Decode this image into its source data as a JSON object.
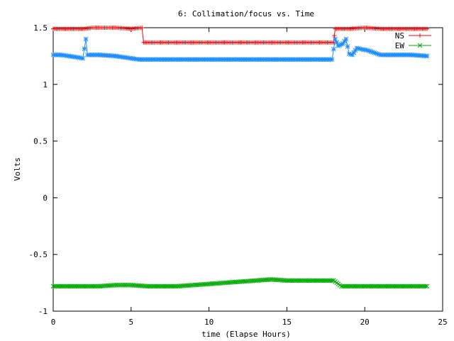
{
  "chart_data": {
    "type": "line",
    "title": "6: Collimation/focus vs. Time",
    "xlabel": "time (Elapse Hours)",
    "ylabel": "Volts",
    "xlim": [
      0,
      25
    ],
    "ylim": [
      -1,
      1.5
    ],
    "xticks": [
      "0",
      "5",
      "10",
      "15",
      "20",
      "25"
    ],
    "xtick_values": [
      0,
      5,
      10,
      15,
      20,
      25
    ],
    "yticks": [
      "-1",
      "-0.5",
      "0",
      "0.5",
      "1",
      "1.5"
    ],
    "ytick_values": [
      -1,
      -0.5,
      0,
      0.5,
      1,
      1.5
    ],
    "grid": false,
    "legend_position": "top-right",
    "series": [
      {
        "name": "NS",
        "color": "#ff0000",
        "marker": "plus",
        "x": [
          0,
          1,
          2,
          2.5,
          3,
          4,
          5,
          5.7,
          5.8,
          6,
          8,
          10,
          12,
          14,
          16,
          17.5,
          18,
          18.05,
          18.1,
          19,
          20,
          21,
          22,
          23,
          24
        ],
        "y": [
          1.49,
          1.49,
          1.49,
          1.5,
          1.5,
          1.5,
          1.49,
          1.5,
          1.37,
          1.37,
          1.37,
          1.37,
          1.37,
          1.37,
          1.37,
          1.37,
          1.37,
          1.43,
          1.49,
          1.49,
          1.5,
          1.49,
          1.49,
          1.49,
          1.49
        ]
      },
      {
        "name": "",
        "color": "#1f8fff",
        "marker": "star",
        "x": [
          0,
          0.5,
          1,
          1.5,
          1.9,
          2.1,
          2.2,
          2.5,
          3,
          4,
          5,
          5.5,
          6,
          7,
          8,
          10,
          12,
          14,
          16,
          17,
          17.9,
          18.1,
          18.3,
          18.6,
          18.8,
          19.0,
          19.2,
          19.5,
          19.8,
          20.2,
          20.6,
          21,
          22,
          23,
          24
        ],
        "y": [
          1.26,
          1.26,
          1.25,
          1.24,
          1.23,
          1.4,
          1.26,
          1.26,
          1.26,
          1.25,
          1.23,
          1.22,
          1.22,
          1.22,
          1.22,
          1.22,
          1.22,
          1.22,
          1.22,
          1.22,
          1.22,
          1.4,
          1.34,
          1.36,
          1.4,
          1.27,
          1.26,
          1.32,
          1.31,
          1.3,
          1.28,
          1.26,
          1.26,
          1.26,
          1.25
        ]
      },
      {
        "name": "EW",
        "color": "#00aa00",
        "marker": "cross",
        "x": [
          0,
          1,
          2,
          3,
          4,
          5,
          6,
          7,
          8,
          9,
          10,
          11,
          12,
          13,
          14,
          15,
          16,
          17,
          18,
          18.5,
          19,
          20,
          21,
          22,
          23,
          24
        ],
        "y": [
          -0.78,
          -0.78,
          -0.78,
          -0.78,
          -0.77,
          -0.77,
          -0.78,
          -0.78,
          -0.78,
          -0.77,
          -0.76,
          -0.75,
          -0.74,
          -0.73,
          -0.72,
          -0.73,
          -0.73,
          -0.73,
          -0.73,
          -0.78,
          -0.78,
          -0.78,
          -0.78,
          -0.78,
          -0.78,
          -0.78
        ]
      }
    ]
  }
}
